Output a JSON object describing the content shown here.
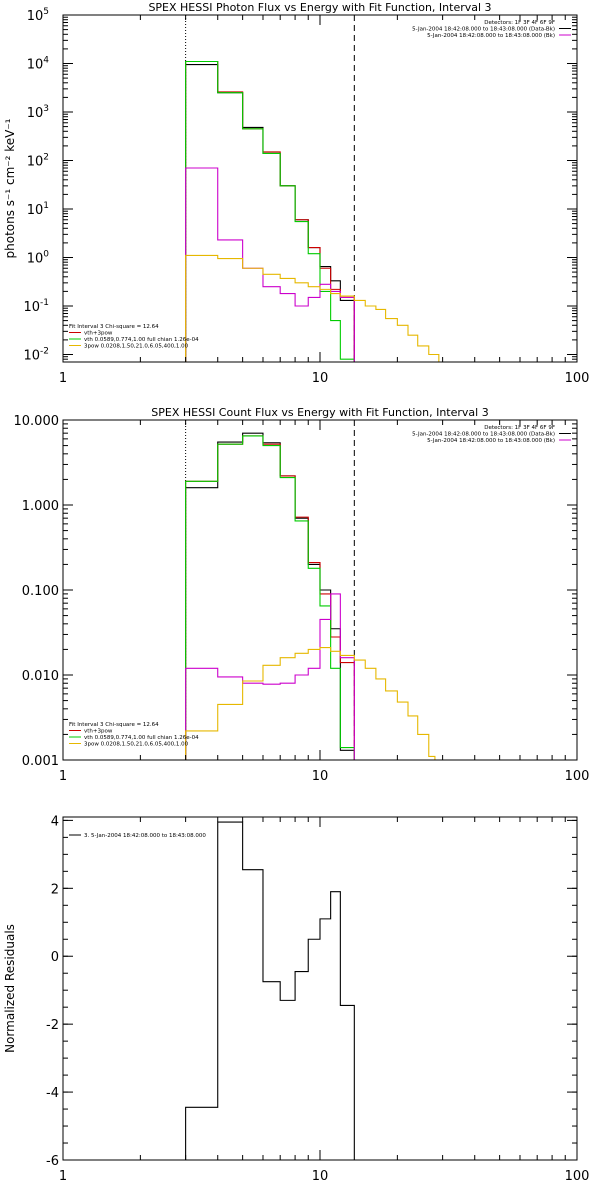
{
  "chart_data": [
    {
      "type": "line",
      "subtype": "step",
      "title": "SPEX HESSI Photon Flux vs Energy with Fit Function, Interval 3",
      "xlabel": "",
      "ylabel": "photons s⁻¹ cm⁻² keV⁻¹",
      "xscale": "log",
      "yscale": "log",
      "xlim": [
        1,
        100
      ],
      "ylim": [
        0.007,
        100000
      ],
      "x_ticks": [
        1,
        10,
        100
      ],
      "x_tick_labels": [
        "1",
        "10",
        "100"
      ],
      "y_ticks": [
        0.01,
        0.1,
        1,
        10,
        100,
        1000,
        10000,
        100000
      ],
      "y_tick_labels": [
        "10",
        "10",
        "10",
        "10",
        "10",
        "10",
        "10",
        "10"
      ],
      "y_tick_exponents": [
        "-2",
        "-1",
        "0",
        "1",
        "2",
        "3",
        "4",
        "5"
      ],
      "vlines": [
        {
          "x": 3.0,
          "style": "dotted"
        },
        {
          "x": 13.6,
          "style": "dashed"
        }
      ],
      "info_lines": [
        "Detectors: 1F 3F 4F 6F 9F",
        "5-Jan-2004 18:42:08.000 to 18:43:08.000 (Data-Bk)",
        "5-Jan-2004 18:42:08.000 to 18:43:08.000 (Bk)"
      ],
      "info_colors": [
        "",
        "#000000",
        "#cc00cc"
      ],
      "legend_header": "Fit Interval 3   Chi-square = 12.64",
      "legend_entries": [
        {
          "label": "vth+3pow",
          "color": "#cc0000"
        },
        {
          "label": "vth 0.0589,0.774,1.00  full chian 1.26e-04",
          "color": "#00cc00"
        },
        {
          "label": "3pow 0.0208,1.50,21.0,6.05,400,1.00",
          "color": "#e6b800"
        }
      ],
      "edges": [
        3.0,
        4.0,
        5.0,
        6.0,
        7.0,
        8.0,
        9.0,
        10.0,
        11.0,
        12.0,
        13.6
      ],
      "series": [
        {
          "name": "Data-Bk",
          "color": "#000000",
          "values": [
            9500,
            2500,
            480,
            140,
            30,
            6,
            1.6,
            0.65,
            0.33,
            0.13
          ]
        },
        {
          "name": "vth+3pow",
          "color": "#cc0000",
          "values": [
            11000,
            2600,
            450,
            150,
            30,
            6,
            1.6,
            0.6,
            0.22,
            0.16
          ]
        },
        {
          "name": "vth",
          "color": "#00cc00",
          "values": [
            11000,
            2500,
            450,
            140,
            30,
            5.5,
            1.2,
            0.2,
            0.05,
            0.008
          ]
        },
        {
          "name": "Bk",
          "color": "#cc00cc",
          "values": [
            70,
            2.3,
            0.6,
            0.25,
            0.18,
            0.1,
            0.15,
            0.28,
            0.2,
            0.15
          ]
        },
        {
          "name": "3pow",
          "color": "#e6b800",
          "edges": [
            3.0,
            4.0,
            5.0,
            6.0,
            7.0,
            8.0,
            9.0,
            10.0,
            11.0,
            12.0,
            13.6,
            15.0,
            16.5,
            18.0,
            20.0,
            22.0,
            24.0,
            26.5,
            29.0
          ],
          "values": [
            1.1,
            0.95,
            0.6,
            0.45,
            0.37,
            0.3,
            0.25,
            0.22,
            0.18,
            0.16,
            0.13,
            0.1,
            0.085,
            0.055,
            0.04,
            0.025,
            0.015,
            0.01
          ]
        }
      ]
    },
    {
      "type": "line",
      "subtype": "step",
      "title": "SPEX HESSI Count Flux vs Energy with Fit Function, Interval 3",
      "xlabel": "",
      "ylabel": "",
      "xscale": "log",
      "yscale": "log",
      "xlim": [
        1,
        100
      ],
      "ylim": [
        0.001,
        10
      ],
      "x_ticks": [
        1,
        10,
        100
      ],
      "x_tick_labels": [
        "1",
        "10",
        "100"
      ],
      "y_ticks": [
        0.001,
        0.01,
        0.1,
        1,
        10
      ],
      "y_tick_labels": [
        "0.001",
        "0.010",
        "0.100",
        "1.000",
        "10.000"
      ],
      "vlines": [
        {
          "x": 3.0,
          "style": "dotted"
        },
        {
          "x": 13.6,
          "style": "dashed"
        }
      ],
      "info_lines": [
        "Detectors: 1F 3F 4F 6F 9F",
        "5-Jan-2004 18:42:08.000 to 18:43:08.000 (Data-Bk)",
        "5-Jan-2004 18:42:08.000 to 18:43:08.000 (Bk)"
      ],
      "info_colors": [
        "",
        "#000000",
        "#cc00cc"
      ],
      "legend_header": "Fit Interval 3   Chi-square = 12.64",
      "legend_entries": [
        {
          "label": "vth+3pow",
          "color": "#cc0000"
        },
        {
          "label": "vth 0.0589,0.774,1.00  full chian 1.26e-04",
          "color": "#00cc00"
        },
        {
          "label": "3pow 0.0208,1.50,21.0,6.05,400,1.00",
          "color": "#e6b800"
        }
      ],
      "edges": [
        3.0,
        4.0,
        5.0,
        6.0,
        7.0,
        8.0,
        9.0,
        10.0,
        11.0,
        12.0,
        13.6
      ],
      "series": [
        {
          "name": "Data-Bk",
          "color": "#000000",
          "values": [
            1.6,
            5.5,
            7.0,
            5.4,
            2.2,
            0.7,
            0.2,
            0.1,
            0.035,
            0.0013
          ]
        },
        {
          "name": "vth+3pow",
          "color": "#cc0000",
          "values": [
            1.9,
            5.2,
            6.5,
            5.2,
            2.2,
            0.72,
            0.21,
            0.09,
            0.028,
            0.014
          ]
        },
        {
          "name": "vth",
          "color": "#00cc00",
          "values": [
            1.9,
            5.2,
            6.5,
            5.0,
            2.1,
            0.65,
            0.18,
            0.065,
            0.012,
            0.0014
          ]
        },
        {
          "name": "Bk",
          "color": "#cc00cc",
          "values": [
            0.012,
            0.0095,
            0.008,
            0.0078,
            0.008,
            0.01,
            0.012,
            0.045,
            0.09,
            0.016
          ]
        },
        {
          "name": "3pow",
          "color": "#e6b800",
          "edges": [
            3.0,
            4.0,
            5.0,
            6.0,
            7.0,
            8.0,
            9.0,
            10.0,
            11.0,
            12.0,
            13.6,
            15.0,
            16.5,
            18.0,
            20.0,
            22.0,
            24.0,
            26.5,
            28.0
          ],
          "values": [
            0.0022,
            0.0045,
            0.0085,
            0.013,
            0.016,
            0.018,
            0.02,
            0.021,
            0.019,
            0.017,
            0.015,
            0.012,
            0.009,
            0.0065,
            0.0048,
            0.0033,
            0.002,
            0.0011
          ]
        }
      ]
    },
    {
      "type": "line",
      "subtype": "step",
      "title": "",
      "xlabel": "",
      "ylabel": "Normalized Residuals",
      "xscale": "log",
      "yscale": "linear",
      "xlim": [
        1,
        100
      ],
      "ylim": [
        -6,
        4.1
      ],
      "x_ticks": [
        1,
        10,
        100
      ],
      "x_tick_labels": [
        "1",
        "10",
        "100"
      ],
      "y_ticks": [
        -6,
        -4,
        -2,
        0,
        2,
        4
      ],
      "y_tick_labels": [
        "-6",
        "-4",
        "-2",
        "0",
        "2",
        "4"
      ],
      "legend_entries": [
        {
          "label": "3. 5-Jan-2004 18:42:08.000 to 18:43:08.000",
          "color": "#000000"
        }
      ],
      "edges": [
        3.0,
        4.0,
        5.0,
        6.0,
        7.0,
        8.0,
        9.0,
        10.0,
        11.0,
        12.0,
        13.6
      ],
      "series": [
        {
          "name": "",
          "color": "#000000",
          "values": [
            -4.45,
            3.95,
            2.55,
            -0.75,
            -1.3,
            -0.45,
            0.5,
            1.1,
            1.9,
            -1.45
          ]
        }
      ]
    }
  ]
}
